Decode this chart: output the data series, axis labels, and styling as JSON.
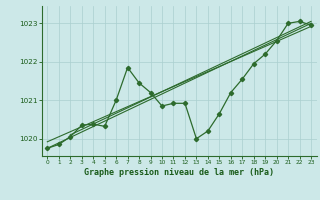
{
  "title": "Graphe pression niveau de la mer (hPa)",
  "bg_color": "#cce8e8",
  "grid_color": "#aacfcf",
  "line_color": "#2d6b2d",
  "text_color": "#1a5c1a",
  "xlim": [
    -0.5,
    23.5
  ],
  "ylim": [
    1019.55,
    1023.45
  ],
  "yticks": [
    1020,
    1021,
    1022,
    1023
  ],
  "xticks": [
    0,
    1,
    2,
    3,
    4,
    5,
    6,
    7,
    8,
    9,
    10,
    11,
    12,
    13,
    14,
    15,
    16,
    17,
    18,
    19,
    20,
    21,
    22,
    23
  ],
  "main_data": [
    [
      0,
      1019.75
    ],
    [
      1,
      1019.85
    ],
    [
      2,
      1020.05
    ],
    [
      3,
      1020.35
    ],
    [
      4,
      1020.38
    ],
    [
      5,
      1020.32
    ],
    [
      6,
      1021.0
    ],
    [
      7,
      1021.85
    ],
    [
      8,
      1021.45
    ],
    [
      9,
      1021.2
    ],
    [
      10,
      1020.85
    ],
    [
      11,
      1020.92
    ],
    [
      12,
      1020.92
    ],
    [
      13,
      1020.0
    ],
    [
      14,
      1020.2
    ],
    [
      15,
      1020.65
    ],
    [
      16,
      1021.2
    ],
    [
      17,
      1021.55
    ],
    [
      18,
      1021.95
    ],
    [
      19,
      1022.2
    ],
    [
      20,
      1022.55
    ],
    [
      21,
      1023.0
    ],
    [
      22,
      1023.05
    ],
    [
      23,
      1022.95
    ]
  ],
  "trend_line1": [
    [
      0,
      1019.75
    ],
    [
      23,
      1023.0
    ]
  ],
  "trend_line2": [
    [
      0,
      1019.92
    ],
    [
      23,
      1022.92
    ]
  ],
  "trend_line3": [
    [
      2,
      1020.1
    ],
    [
      23,
      1023.05
    ]
  ]
}
